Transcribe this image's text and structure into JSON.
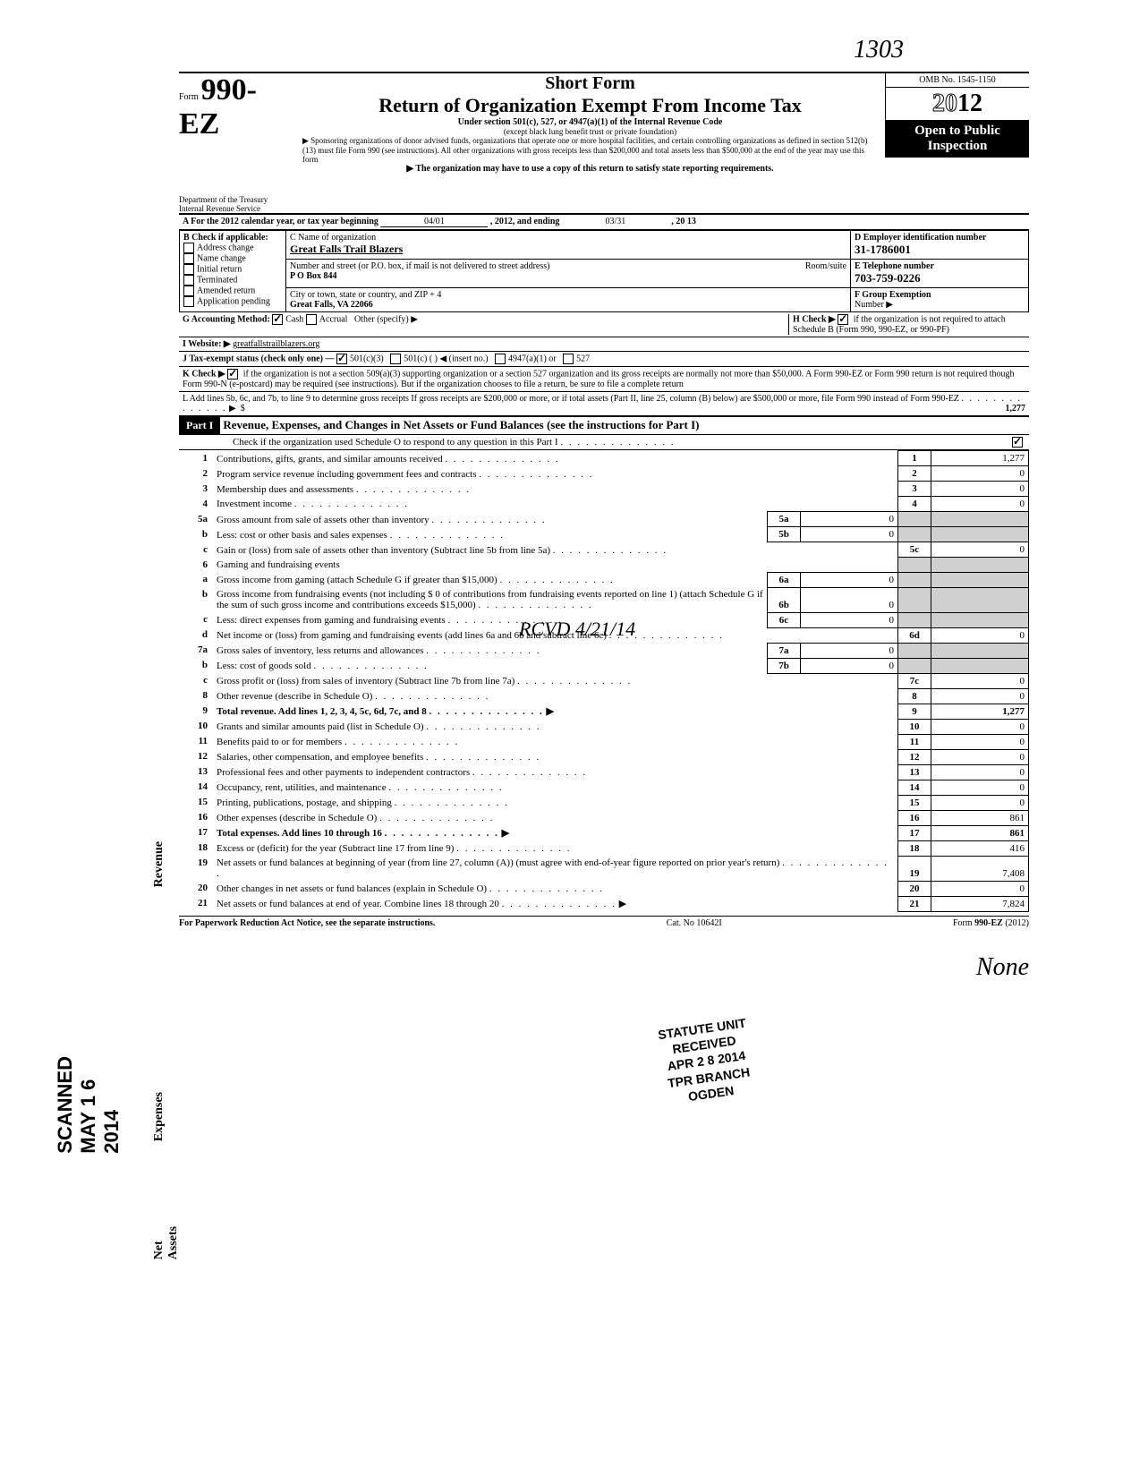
{
  "form": {
    "number_prefix": "Form",
    "number": "990-EZ",
    "omb": "OMB No. 1545-1150",
    "year_prefix": "20",
    "year_digit": "12",
    "title1": "Short Form",
    "title2": "Return of Organization Exempt From Income Tax",
    "subtitle": "Under section 501(c), 527, or 4947(a)(1) of the Internal Revenue Code",
    "subtitle2": "(except black lung benefit trust or private foundation)",
    "sponsor_note": "▶ Sponsoring organizations of donor advised funds, organizations that operate one or more hospital facilities, and certain controlling organizations as defined in section 512(b)(13) must file Form 990 (see instructions). All other organizations with gross receipts less than $200,000 and total assets less than $500,000 at the end of the year may use this form",
    "copy_note": "▶ The organization may have to use a copy of this return to satisfy state reporting requirements.",
    "dept": "Department of the Treasury",
    "irs": "Internal Revenue Service",
    "open": "Open to Public",
    "inspection": "Inspection",
    "handwritten_top": "1303"
  },
  "header": {
    "A_line": "A  For the 2012 calendar year, or tax year beginning",
    "A_begin": "04/01",
    "A_mid": ", 2012, and ending",
    "A_end": "03/31",
    "A_endyear": ", 20   13",
    "B_label": "B  Check if applicable:",
    "B_opts": [
      "Address change",
      "Name change",
      "Initial return",
      "Terminated",
      "Amended return",
      "Application pending"
    ],
    "C_label": "C  Name of organization",
    "C_name": "Great Falls Trail Blazers",
    "C_addr_label": "Number and street (or P.O. box, if mail is not delivered to street address)",
    "C_addr": "P O Box 844",
    "C_room_label": "Room/suite",
    "C_city_label": "City or town, state or country, and ZIP + 4",
    "C_city": "Great Falls, VA 22066",
    "D_label": "D Employer identification number",
    "D_ein": "31-1786001",
    "E_label": "E  Telephone number",
    "E_phone": "703-759-0226",
    "F_label": "F  Group Exemption",
    "F_number": "Number ▶",
    "G_label": "G  Accounting Method:",
    "G_cash": "Cash",
    "G_accrual": "Accrual",
    "G_other": "Other (specify) ▶",
    "H_label": "H  Check ▶",
    "H_text": "if the organization is not required to attach Schedule B (Form 990, 990-EZ, or 990-PF)",
    "I_label": "I   Website: ▶",
    "I_site": "greatfallstrailblazers.org",
    "J_label": "J  Tax-exempt status (check only one) —",
    "J_501c3": "501(c)(3)",
    "J_501c": "501(c) (         ) ◀ (insert no.)",
    "J_4947": "4947(a)(1) or",
    "J_527": "527",
    "K_label": "K  Check ▶",
    "K_text": "if the organization is not a section 509(a)(3) supporting organization or a section 527 organization and its gross receipts are normally not more than $50,000. A Form 990-EZ or Form 990 return is not required though Form 990-N (e-postcard) may be required (see instructions). But if the organization chooses to file a return, be sure to file a complete return",
    "L_text": "L  Add lines 5b, 6c, and 7b, to line 9 to determine gross receipts  If gross receipts are $200,000 or more, or if total assets (Part II, line 25, column (B) below) are $500,000 or more, file Form 990 instead of Form 990-EZ",
    "L_amount": "1,277"
  },
  "part1": {
    "header": "Part I",
    "title": "Revenue, Expenses, and Changes in Net Assets or Fund Balances (see the instructions for Part I)",
    "check_line": "Check if the organization used Schedule O to respond to any question in this Part I",
    "rcvd_stamp": "RCVD 4/21/14",
    "stamp_lines": [
      "STATUTE UNIT",
      "RECEIVED",
      "APR 2 8 2014",
      "TPR BRANCH",
      "OGDEN"
    ]
  },
  "rows": [
    {
      "n": "1",
      "desc": "Contributions, gifts, grants, and similar amounts received",
      "box": "1",
      "amt": "1,277"
    },
    {
      "n": "2",
      "desc": "Program service revenue including government fees and contracts",
      "box": "2",
      "amt": "0"
    },
    {
      "n": "3",
      "desc": "Membership dues and assessments",
      "box": "3",
      "amt": "0"
    },
    {
      "n": "4",
      "desc": "Investment income",
      "box": "4",
      "amt": "0"
    },
    {
      "n": "5a",
      "desc": "Gross amount from sale of assets other than inventory",
      "ibox": "5a",
      "iamt": "0"
    },
    {
      "n": "b",
      "desc": "Less: cost or other basis and sales expenses",
      "ibox": "5b",
      "iamt": "0"
    },
    {
      "n": "c",
      "desc": "Gain or (loss) from sale of assets other than inventory (Subtract line 5b from line 5a)",
      "box": "5c",
      "amt": "0"
    },
    {
      "n": "6",
      "desc": "Gaming and fundraising events"
    },
    {
      "n": "a",
      "desc": "Gross income from gaming (attach Schedule G if greater than $15,000)",
      "ibox": "6a",
      "iamt": "0"
    },
    {
      "n": "b",
      "desc": "Gross income from fundraising events (not including  $                    0 of contributions from fundraising events reported on line 1) (attach Schedule G if the sum of such gross income and contributions exceeds $15,000)",
      "ibox": "6b",
      "iamt": "0"
    },
    {
      "n": "c",
      "desc": "Less: direct expenses from gaming and fundraising events",
      "ibox": "6c",
      "iamt": "0"
    },
    {
      "n": "d",
      "desc": "Net income or (loss) from gaming and fundraising events (add lines 6a and 6b and subtract line 6c)",
      "box": "6d",
      "amt": "0"
    },
    {
      "n": "7a",
      "desc": "Gross sales of inventory, less returns and allowances",
      "ibox": "7a",
      "iamt": "0"
    },
    {
      "n": "b",
      "desc": "Less: cost of goods sold",
      "ibox": "7b",
      "iamt": "0"
    },
    {
      "n": "c",
      "desc": "Gross profit or (loss) from sales of inventory (Subtract line 7b from line 7a)",
      "box": "7c",
      "amt": "0"
    },
    {
      "n": "8",
      "desc": "Other revenue (describe in Schedule O)",
      "box": "8",
      "amt": "0"
    },
    {
      "n": "9",
      "desc": "Total revenue. Add lines 1, 2, 3, 4, 5c, 6d, 7c, and 8",
      "box": "9",
      "amt": "1,277",
      "bold": true,
      "arrow": true
    },
    {
      "n": "10",
      "desc": "Grants and similar amounts paid (list in Schedule O)",
      "box": "10",
      "amt": "0"
    },
    {
      "n": "11",
      "desc": "Benefits paid to or for members",
      "box": "11",
      "amt": "0"
    },
    {
      "n": "12",
      "desc": "Salaries, other compensation, and employee benefits",
      "box": "12",
      "amt": "0"
    },
    {
      "n": "13",
      "desc": "Professional fees and other payments to independent contractors",
      "box": "13",
      "amt": "0"
    },
    {
      "n": "14",
      "desc": "Occupancy, rent, utilities, and maintenance",
      "box": "14",
      "amt": "0"
    },
    {
      "n": "15",
      "desc": "Printing, publications, postage, and shipping",
      "box": "15",
      "amt": "0"
    },
    {
      "n": "16",
      "desc": "Other expenses (describe in Schedule O)",
      "box": "16",
      "amt": "861"
    },
    {
      "n": "17",
      "desc": "Total expenses. Add lines 10 through 16",
      "box": "17",
      "amt": "861",
      "bold": true,
      "arrow": true
    },
    {
      "n": "18",
      "desc": "Excess or (deficit) for the year (Subtract line 17 from line 9)",
      "box": "18",
      "amt": "416"
    },
    {
      "n": "19",
      "desc": "Net assets or fund balances at beginning of year (from line 27, column (A)) (must agree with end-of-year figure reported on prior year's return)",
      "box": "19",
      "amt": "7,408"
    },
    {
      "n": "20",
      "desc": "Other changes in net assets or fund balances (explain in Schedule O)",
      "box": "20",
      "amt": "0"
    },
    {
      "n": "21",
      "desc": "Net assets or fund balances at end of year. Combine lines 18 through 20",
      "box": "21",
      "amt": "7,824",
      "arrow": true
    }
  ],
  "footer": {
    "left": "For Paperwork Reduction Act Notice, see the separate instructions.",
    "mid": "Cat. No  10642I",
    "right": "Form 990-EZ (2012)"
  },
  "scanned": "SCANNED MAY 1 6 2014",
  "signature": "None"
}
